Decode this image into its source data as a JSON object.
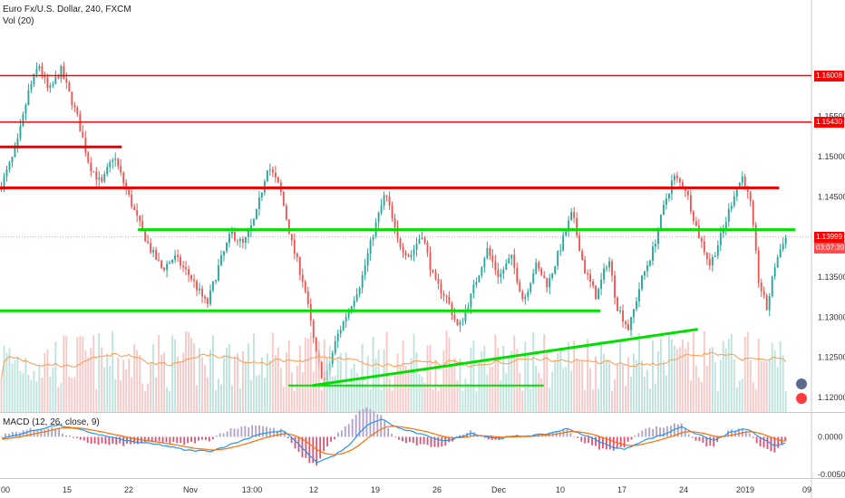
{
  "chart_header": {
    "symbol_line": "Euro Fx/U.S. Dollar, 240, FXCM",
    "volume_label": "Vol (20)",
    "macd_label": "MACD (12, 26, close, 9)"
  },
  "chart_data": {
    "type": "candlestick",
    "price_axis": {
      "ylim": [
        1.1182,
        1.1695
      ],
      "ticks": [
        "1.12000",
        "1.12500",
        "1.13000",
        "1.13500",
        "1.14000",
        "1.14500",
        "1.15000",
        "1.15500"
      ],
      "tick_values": [
        1.12,
        1.125,
        1.13,
        1.135,
        1.14,
        1.145,
        1.15,
        1.155
      ]
    },
    "macd_axis": {
      "ticks": [
        "0.0000",
        "-0.0050"
      ],
      "tick_values": [
        0,
        -0.005
      ],
      "ylim": [
        -0.0055,
        0.0032
      ]
    },
    "x_ticks": [
      "00",
      "15",
      "22",
      "Nov",
      "13:00",
      "12",
      "19",
      "26",
      "Dec",
      "10",
      "17",
      "24",
      "2019",
      "09"
    ],
    "price_tags": [
      {
        "text": "1.16008",
        "value": 1.16008,
        "color": "#ff0000"
      },
      {
        "text": "1.15430",
        "value": 1.1543,
        "color": "#ff0000"
      },
      {
        "text": "1.13999",
        "value": 1.13999,
        "color": "#ff0000"
      },
      {
        "text": "03:07:39",
        "value": 1.1386,
        "color": "#ff4d4d"
      }
    ],
    "last_price": 1.13999,
    "horizontal_levels": [
      {
        "value": 1.16008,
        "color": "#ff0000",
        "width": 1.5,
        "x_start": 0.0,
        "x_end": 1.0
      },
      {
        "value": 1.1543,
        "color": "#ff0000",
        "width": 1.5,
        "x_start": 0.0,
        "x_end": 1.0
      },
      {
        "value": 1.1512,
        "color": "#ee0000",
        "width": 3,
        "x_start": 0.0,
        "x_end": 0.15
      },
      {
        "value": 1.1461,
        "color": "#ee0000",
        "width": 3,
        "x_start": 0.0,
        "x_end": 0.96
      },
      {
        "value": 1.1409,
        "color": "#00e000",
        "width": 3,
        "x_start": 0.17,
        "x_end": 0.98
      },
      {
        "value": 1.1308,
        "color": "#00e000",
        "width": 3,
        "x_start": 0.0,
        "x_end": 0.74
      },
      {
        "value": 1.1215,
        "color": "#00e000",
        "width": 2,
        "x_start": 0.355,
        "x_end": 0.67
      }
    ],
    "trendlines": [
      {
        "from": [
          0.385,
          1.1215
        ],
        "to": [
          0.86,
          1.1285
        ],
        "color": "#00e000",
        "width": 3
      }
    ],
    "anchor_prices": [
      [
        0.0,
        1.146
      ],
      [
        0.02,
        1.151
      ],
      [
        0.035,
        1.158
      ],
      [
        0.048,
        1.1615
      ],
      [
        0.06,
        1.158
      ],
      [
        0.075,
        1.1608
      ],
      [
        0.095,
        1.155
      ],
      [
        0.11,
        1.149
      ],
      [
        0.125,
        1.1465
      ],
      [
        0.14,
        1.1502
      ],
      [
        0.155,
        1.146
      ],
      [
        0.17,
        1.142
      ],
      [
        0.185,
        1.1385
      ],
      [
        0.2,
        1.136
      ],
      [
        0.215,
        1.1375
      ],
      [
        0.235,
        1.135
      ],
      [
        0.255,
        1.1315
      ],
      [
        0.27,
        1.1365
      ],
      [
        0.285,
        1.1405
      ],
      [
        0.3,
        1.139
      ],
      [
        0.315,
        1.1425
      ],
      [
        0.33,
        1.149
      ],
      [
        0.345,
        1.146
      ],
      [
        0.36,
        1.139
      ],
      [
        0.375,
        1.134
      ],
      [
        0.39,
        1.125
      ],
      [
        0.4,
        1.1218
      ],
      [
        0.415,
        1.1275
      ],
      [
        0.43,
        1.131
      ],
      [
        0.445,
        1.1345
      ],
      [
        0.46,
        1.1405
      ],
      [
        0.475,
        1.1455
      ],
      [
        0.49,
        1.1395
      ],
      [
        0.505,
        1.1375
      ],
      [
        0.52,
        1.1405
      ],
      [
        0.535,
        1.1345
      ],
      [
        0.55,
        1.1325
      ],
      [
        0.565,
        1.1285
      ],
      [
        0.58,
        1.1325
      ],
      [
        0.6,
        1.1385
      ],
      [
        0.615,
        1.135
      ],
      [
        0.63,
        1.1375
      ],
      [
        0.645,
        1.132
      ],
      [
        0.66,
        1.1365
      ],
      [
        0.675,
        1.134
      ],
      [
        0.69,
        1.1385
      ],
      [
        0.705,
        1.143
      ],
      [
        0.72,
        1.136
      ],
      [
        0.735,
        1.1325
      ],
      [
        0.75,
        1.1375
      ],
      [
        0.76,
        1.1315
      ],
      [
        0.775,
        1.1285
      ],
      [
        0.79,
        1.1345
      ],
      [
        0.805,
        1.1385
      ],
      [
        0.82,
        1.1445
      ],
      [
        0.83,
        1.1475
      ],
      [
        0.845,
        1.146
      ],
      [
        0.86,
        1.1405
      ],
      [
        0.875,
        1.1365
      ],
      [
        0.89,
        1.1405
      ],
      [
        0.905,
        1.1455
      ],
      [
        0.915,
        1.1475
      ],
      [
        0.925,
        1.144
      ],
      [
        0.935,
        1.1345
      ],
      [
        0.945,
        1.131
      ],
      [
        0.955,
        1.1365
      ],
      [
        0.965,
        1.1395
      ],
      [
        0.97,
        1.14
      ]
    ],
    "macd_anchor": [
      [
        0.0,
        -0.0003
      ],
      [
        0.04,
        0.0008
      ],
      [
        0.07,
        0.0016
      ],
      [
        0.1,
        0.0009
      ],
      [
        0.13,
        0.0001
      ],
      [
        0.16,
        -0.0006
      ],
      [
        0.2,
        -0.0011
      ],
      [
        0.23,
        -0.0018
      ],
      [
        0.26,
        -0.0019
      ],
      [
        0.29,
        -0.0008
      ],
      [
        0.32,
        0.0004
      ],
      [
        0.35,
        0.0008
      ],
      [
        0.37,
        -0.0012
      ],
      [
        0.39,
        -0.0034
      ],
      [
        0.41,
        -0.0026
      ],
      [
        0.43,
        -0.0012
      ],
      [
        0.45,
        0.0014
      ],
      [
        0.47,
        0.0024
      ],
      [
        0.49,
        0.0012
      ],
      [
        0.52,
        0.0003
      ],
      [
        0.55,
        -0.0006
      ],
      [
        0.58,
        0.0005
      ],
      [
        0.61,
        -0.0002
      ],
      [
        0.64,
        0.0001
      ],
      [
        0.67,
        0.0003
      ],
      [
        0.7,
        0.0011
      ],
      [
        0.73,
        -0.0002
      ],
      [
        0.75,
        -0.0012
      ],
      [
        0.77,
        -0.0017
      ],
      [
        0.79,
        -0.0006
      ],
      [
        0.82,
        0.0004
      ],
      [
        0.84,
        0.0014
      ],
      [
        0.86,
        0.0003
      ],
      [
        0.88,
        -0.0005
      ],
      [
        0.9,
        0.0006
      ],
      [
        0.92,
        0.0011
      ],
      [
        0.94,
        -0.0003
      ],
      [
        0.955,
        -0.0013
      ],
      [
        0.97,
        -0.0007
      ]
    ],
    "colors": {
      "up": "#26a69a",
      "down": "#ef5350",
      "vol_up": "#a8d8d0",
      "vol_down": "#f4b6b3",
      "vol_ma": "#ff9a4a",
      "macd_line": "#2196f3",
      "signal_line": "#ff6d00",
      "hist_pos": "#b0a0c8",
      "hist_neg": "#e05070"
    }
  }
}
